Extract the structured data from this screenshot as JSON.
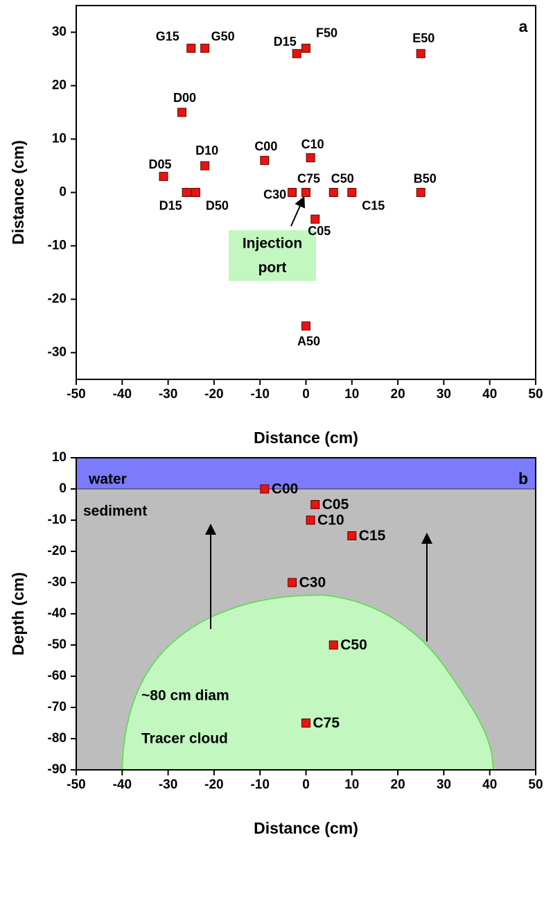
{
  "chart_data": [
    {
      "type": "scatter",
      "panel_label": "a",
      "x_label": "Distance (cm)",
      "y_label": "Distance (cm)",
      "xlim": [
        -50,
        50
      ],
      "xticks": [
        -50,
        -40,
        -30,
        -20,
        -10,
        0,
        10,
        20,
        30,
        40,
        50
      ],
      "ylim": [
        -35,
        35
      ],
      "yticks": [
        -30,
        -20,
        -10,
        0,
        10,
        20,
        30
      ],
      "series": [
        {
          "color": "#e8140f",
          "labels": [
            "G15",
            "G50",
            "D15",
            "F50",
            "E50",
            "D00",
            "D10",
            "C00",
            "C10",
            "D05",
            "D15",
            "D50",
            "C30",
            "C75",
            "C50",
            "C15",
            "B50",
            "C05",
            "A50"
          ],
          "x": [
            -25,
            -22,
            -2,
            0,
            25,
            -27,
            -22,
            -9,
            1,
            -31,
            -26,
            -24,
            -3,
            0,
            6,
            10,
            25,
            2,
            0
          ],
          "values": [
            27,
            27,
            26,
            27,
            26,
            15,
            5,
            6,
            6.5,
            3,
            0,
            0,
            0,
            0,
            0,
            0,
            0,
            -5,
            -25
          ]
        }
      ],
      "annotation_lines": [
        "Injection",
        "port"
      ]
    },
    {
      "type": "scatter",
      "panel_label": "b",
      "x_label": "Distance (cm)",
      "y_label": "Depth (cm)",
      "xlim": [
        -50,
        50
      ],
      "xticks": [
        -50,
        -40,
        -30,
        -20,
        -10,
        0,
        10,
        20,
        30,
        40,
        50
      ],
      "ylim": [
        -90,
        10
      ],
      "yticks": [
        -90,
        -80,
        -70,
        -60,
        -50,
        -40,
        -30,
        -20,
        -10,
        0,
        10
      ],
      "region_labels": [
        "water",
        "sediment"
      ],
      "series": [
        {
          "color": "#e8140f",
          "labels": [
            "C00",
            "C05",
            "C10",
            "C15",
            "C30",
            "C50",
            "C75"
          ],
          "x": [
            -9,
            2,
            1,
            10,
            -3,
            6,
            0
          ],
          "values": [
            0,
            -5,
            -10,
            -15,
            -30,
            -50,
            -75
          ]
        }
      ],
      "annotation_lines": [
        "Tracer cloud",
        "~80 cm diam"
      ]
    }
  ]
}
